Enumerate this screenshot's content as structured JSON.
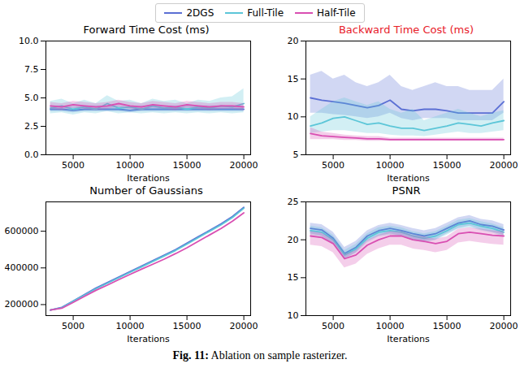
{
  "legend": "top",
  "caption": "Fig. 11: Ablation on sample rasterizer.",
  "chart_data": [
    {
      "type": "line",
      "title": "Forward Time Cost (ms)",
      "x_label": "Iterations",
      "x": [
        3000,
        4000,
        5000,
        6000,
        7000,
        8000,
        9000,
        10000,
        11000,
        12000,
        13000,
        14000,
        15000,
        16000,
        17000,
        18000,
        19000,
        20000
      ],
      "xlim": [
        2600,
        20600
      ],
      "xticks": [
        5000,
        10000,
        15000,
        20000
      ],
      "ylim": [
        0,
        10
      ],
      "yticks": [
        {
          "value": 0,
          "label": "0.0"
        },
        {
          "value": 2.5,
          "label": "2.5"
        },
        {
          "value": 5,
          "label": "5.0"
        },
        {
          "value": 7.5,
          "label": "7.5"
        },
        {
          "value": 10,
          "label": "10.0"
        }
      ],
      "series": [
        {
          "name": "2DGS",
          "color": "#5b6fd4",
          "values": [
            4.0,
            4.0,
            3.9,
            4.0,
            4.0,
            4.0,
            4.0,
            3.9,
            4.0,
            4.0,
            4.0,
            4.0,
            4.0,
            4.0,
            4.0,
            4.0,
            4.0,
            4.0
          ],
          "lower": [
            3.8,
            3.8,
            3.7,
            3.8,
            3.8,
            3.8,
            3.8,
            3.7,
            3.8,
            3.8,
            3.8,
            3.8,
            3.8,
            3.8,
            3.8,
            3.8,
            3.8,
            3.8
          ],
          "upper": [
            4.3,
            4.3,
            4.2,
            4.3,
            4.3,
            4.3,
            4.3,
            4.2,
            4.3,
            4.3,
            4.3,
            4.3,
            4.3,
            4.3,
            4.3,
            4.3,
            4.3,
            4.3
          ]
        },
        {
          "name": "Full-Tile",
          "color": "#5cc6d8",
          "values": [
            4.1,
            4.3,
            4.0,
            4.2,
            4.0,
            4.5,
            4.1,
            4.2,
            4.0,
            4.3,
            4.1,
            4.2,
            4.0,
            4.2,
            4.1,
            4.3,
            4.2,
            4.5
          ],
          "lower": [
            3.6,
            3.7,
            3.5,
            3.7,
            3.6,
            3.8,
            3.6,
            3.7,
            3.6,
            3.7,
            3.6,
            3.7,
            3.6,
            3.7,
            3.6,
            3.7,
            3.6,
            3.7
          ],
          "upper": [
            4.7,
            4.9,
            4.5,
            4.8,
            4.5,
            5.2,
            4.7,
            4.8,
            4.5,
            4.9,
            4.7,
            4.8,
            4.5,
            4.8,
            4.7,
            5.0,
            5.1,
            5.8
          ]
        },
        {
          "name": "Half-Tile",
          "color": "#d94fb2",
          "values": [
            4.3,
            4.2,
            4.4,
            4.3,
            4.2,
            4.3,
            4.5,
            4.3,
            4.2,
            4.4,
            4.3,
            4.2,
            4.4,
            4.3,
            4.2,
            4.3,
            4.3,
            4.2
          ],
          "lower": [
            4.0,
            3.9,
            4.1,
            4.0,
            3.9,
            4.0,
            4.2,
            4.0,
            3.9,
            4.1,
            4.0,
            3.9,
            4.1,
            4.0,
            3.9,
            4.0,
            4.0,
            3.9
          ],
          "upper": [
            4.6,
            4.5,
            4.7,
            4.6,
            4.5,
            4.6,
            4.8,
            4.6,
            4.5,
            4.7,
            4.6,
            4.5,
            4.7,
            4.6,
            4.5,
            4.6,
            4.6,
            4.5
          ]
        }
      ]
    },
    {
      "type": "line",
      "title": "Backward Time Cost (ms)",
      "x_label": "Iterations",
      "x": [
        3000,
        4000,
        5000,
        6000,
        7000,
        8000,
        9000,
        10000,
        11000,
        12000,
        13000,
        14000,
        15000,
        16000,
        17000,
        18000,
        19000,
        20000
      ],
      "xlim": [
        2600,
        20600
      ],
      "xticks": [
        5000,
        10000,
        15000,
        20000
      ],
      "ylim": [
        5,
        20
      ],
      "yticks": [
        5,
        10,
        15,
        20
      ],
      "series": [
        {
          "name": "2DGS",
          "color": "#5b6fd4",
          "values": [
            12.5,
            12.2,
            12.0,
            11.8,
            11.5,
            11.2,
            11.5,
            12.2,
            11.0,
            10.8,
            11.0,
            11.0,
            10.8,
            10.5,
            10.5,
            10.5,
            10.5,
            12.0
          ],
          "lower": [
            10.5,
            10.5,
            10.3,
            10.2,
            10.0,
            9.8,
            10.0,
            10.5,
            9.8,
            9.5,
            9.8,
            9.8,
            9.8,
            9.5,
            9.5,
            9.5,
            9.5,
            10.5
          ],
          "upper": [
            15.5,
            16.0,
            15.0,
            15.5,
            14.5,
            14.0,
            14.5,
            15.5,
            14.0,
            13.5,
            14.0,
            14.5,
            14.0,
            14.0,
            13.5,
            13.5,
            13.5,
            15.0
          ]
        },
        {
          "name": "Full-Tile",
          "color": "#5cc6d8",
          "values": [
            8.8,
            9.2,
            9.8,
            10.0,
            9.5,
            9.0,
            9.2,
            8.8,
            8.5,
            8.5,
            8.2,
            8.5,
            8.8,
            9.2,
            9.0,
            8.8,
            9.2,
            9.5
          ],
          "lower": [
            7.8,
            8.0,
            8.2,
            8.2,
            8.0,
            7.8,
            7.8,
            7.6,
            7.5,
            7.5,
            7.4,
            7.6,
            7.8,
            8.0,
            7.8,
            7.8,
            8.0,
            8.2
          ],
          "upper": [
            10.0,
            11.0,
            12.0,
            12.5,
            12.0,
            11.5,
            12.0,
            11.0,
            10.5,
            11.0,
            9.5,
            10.0,
            10.5,
            11.0,
            10.5,
            10.0,
            10.5,
            10.8
          ]
        },
        {
          "name": "Half-Tile",
          "color": "#d94fb2",
          "values": [
            7.8,
            7.5,
            7.4,
            7.3,
            7.2,
            7.1,
            7.1,
            7.0,
            7.0,
            7.0,
            7.0,
            7.0,
            7.0,
            7.0,
            7.0,
            7.0,
            7.0,
            7.0
          ],
          "lower": [
            7.0,
            7.0,
            7.0,
            6.9,
            6.9,
            6.8,
            6.8,
            6.8,
            6.8,
            6.8,
            6.8,
            6.8,
            6.8,
            6.8,
            6.8,
            6.8,
            6.8,
            6.8
          ],
          "upper": [
            8.6,
            8.0,
            7.8,
            7.6,
            7.5,
            7.4,
            7.4,
            7.2,
            7.2,
            7.2,
            7.2,
            7.2,
            7.2,
            7.2,
            7.2,
            7.2,
            7.2,
            7.2
          ]
        }
      ]
    },
    {
      "type": "line",
      "title": "Number of Gaussians",
      "x_label": "Iterations",
      "x": [
        3000,
        4000,
        5000,
        6000,
        7000,
        8000,
        9000,
        10000,
        11000,
        12000,
        13000,
        14000,
        15000,
        16000,
        17000,
        18000,
        19000,
        20000
      ],
      "xlim": [
        2600,
        20600
      ],
      "xticks": [
        5000,
        10000,
        15000,
        20000
      ],
      "ylim": [
        140000,
        760000
      ],
      "yticks": [
        200000,
        400000,
        600000
      ],
      "series": [
        {
          "name": "2DGS",
          "color": "#5b6fd4",
          "values": [
            170000,
            185000,
            220000,
            255000,
            290000,
            320000,
            350000,
            380000,
            410000,
            440000,
            470000,
            500000,
            535000,
            570000,
            605000,
            640000,
            680000,
            730000
          ]
        },
        {
          "name": "Full-Tile",
          "color": "#5cc6d8",
          "values": [
            170000,
            183000,
            218000,
            252000,
            286000,
            316000,
            346000,
            376000,
            405000,
            435000,
            465000,
            495000,
            530000,
            565000,
            600000,
            635000,
            675000,
            725000
          ]
        },
        {
          "name": "Half-Tile",
          "color": "#d94fb2",
          "values": [
            170000,
            180000,
            212000,
            245000,
            278000,
            306000,
            336000,
            365000,
            393000,
            420000,
            448000,
            478000,
            510000,
            545000,
            580000,
            615000,
            655000,
            700000
          ]
        }
      ]
    },
    {
      "type": "line",
      "title": "PSNR",
      "x_label": "Iterations",
      "x": [
        3000,
        4000,
        5000,
        6000,
        7000,
        8000,
        9000,
        10000,
        11000,
        12000,
        13000,
        14000,
        15000,
        16000,
        17000,
        18000,
        19000,
        20000
      ],
      "xlim": [
        2600,
        20600
      ],
      "xticks": [
        5000,
        10000,
        15000,
        20000
      ],
      "ylim": [
        10,
        25
      ],
      "yticks": [
        10,
        15,
        20,
        25
      ],
      "series": [
        {
          "name": "2DGS",
          "color": "#5b6fd4",
          "values": [
            21.5,
            21.3,
            20.2,
            18.2,
            19.0,
            20.5,
            21.2,
            21.5,
            21.2,
            20.8,
            20.5,
            20.8,
            21.5,
            22.2,
            22.5,
            22.0,
            21.8,
            21.3
          ],
          "lower": [
            20.8,
            20.5,
            19.5,
            17.5,
            18.3,
            19.8,
            20.5,
            20.8,
            20.5,
            20.0,
            19.8,
            20.0,
            20.8,
            21.5,
            21.8,
            21.3,
            21.0,
            20.6
          ],
          "upper": [
            22.2,
            22.0,
            21.0,
            19.0,
            19.8,
            21.2,
            21.9,
            22.2,
            21.9,
            21.5,
            21.2,
            21.5,
            22.2,
            22.9,
            23.2,
            22.7,
            22.5,
            22.0
          ]
        },
        {
          "name": "Full-Tile",
          "color": "#5cc6d8",
          "values": [
            21.2,
            21.0,
            20.0,
            18.0,
            18.8,
            20.2,
            21.0,
            21.2,
            21.0,
            20.5,
            20.2,
            20.5,
            21.2,
            22.0,
            22.2,
            21.8,
            21.5,
            21.0
          ],
          "lower": [
            20.6,
            20.4,
            19.4,
            17.4,
            18.2,
            19.6,
            20.4,
            20.6,
            20.4,
            19.9,
            19.6,
            19.9,
            20.6,
            21.4,
            21.6,
            21.2,
            20.9,
            20.4
          ],
          "upper": [
            21.8,
            21.6,
            20.6,
            18.6,
            19.4,
            20.8,
            21.6,
            21.8,
            21.6,
            21.1,
            20.8,
            21.1,
            21.8,
            22.6,
            22.8,
            22.4,
            22.1,
            21.6
          ]
        },
        {
          "name": "Half-Tile",
          "color": "#d94fb2",
          "values": [
            20.5,
            20.3,
            19.5,
            17.5,
            18.0,
            19.3,
            20.0,
            20.5,
            20.5,
            20.0,
            19.8,
            19.5,
            19.8,
            20.8,
            21.0,
            20.8,
            20.6,
            20.5
          ],
          "lower": [
            19.3,
            19.1,
            18.3,
            16.3,
            16.8,
            18.1,
            18.8,
            19.3,
            19.3,
            18.8,
            18.6,
            18.3,
            18.6,
            19.6,
            19.8,
            19.6,
            19.4,
            19.3
          ],
          "upper": [
            21.1,
            20.9,
            20.1,
            18.1,
            18.6,
            19.9,
            20.6,
            21.1,
            21.1,
            20.6,
            20.4,
            20.1,
            20.4,
            21.4,
            21.6,
            21.4,
            21.2,
            21.1
          ]
        }
      ]
    }
  ]
}
